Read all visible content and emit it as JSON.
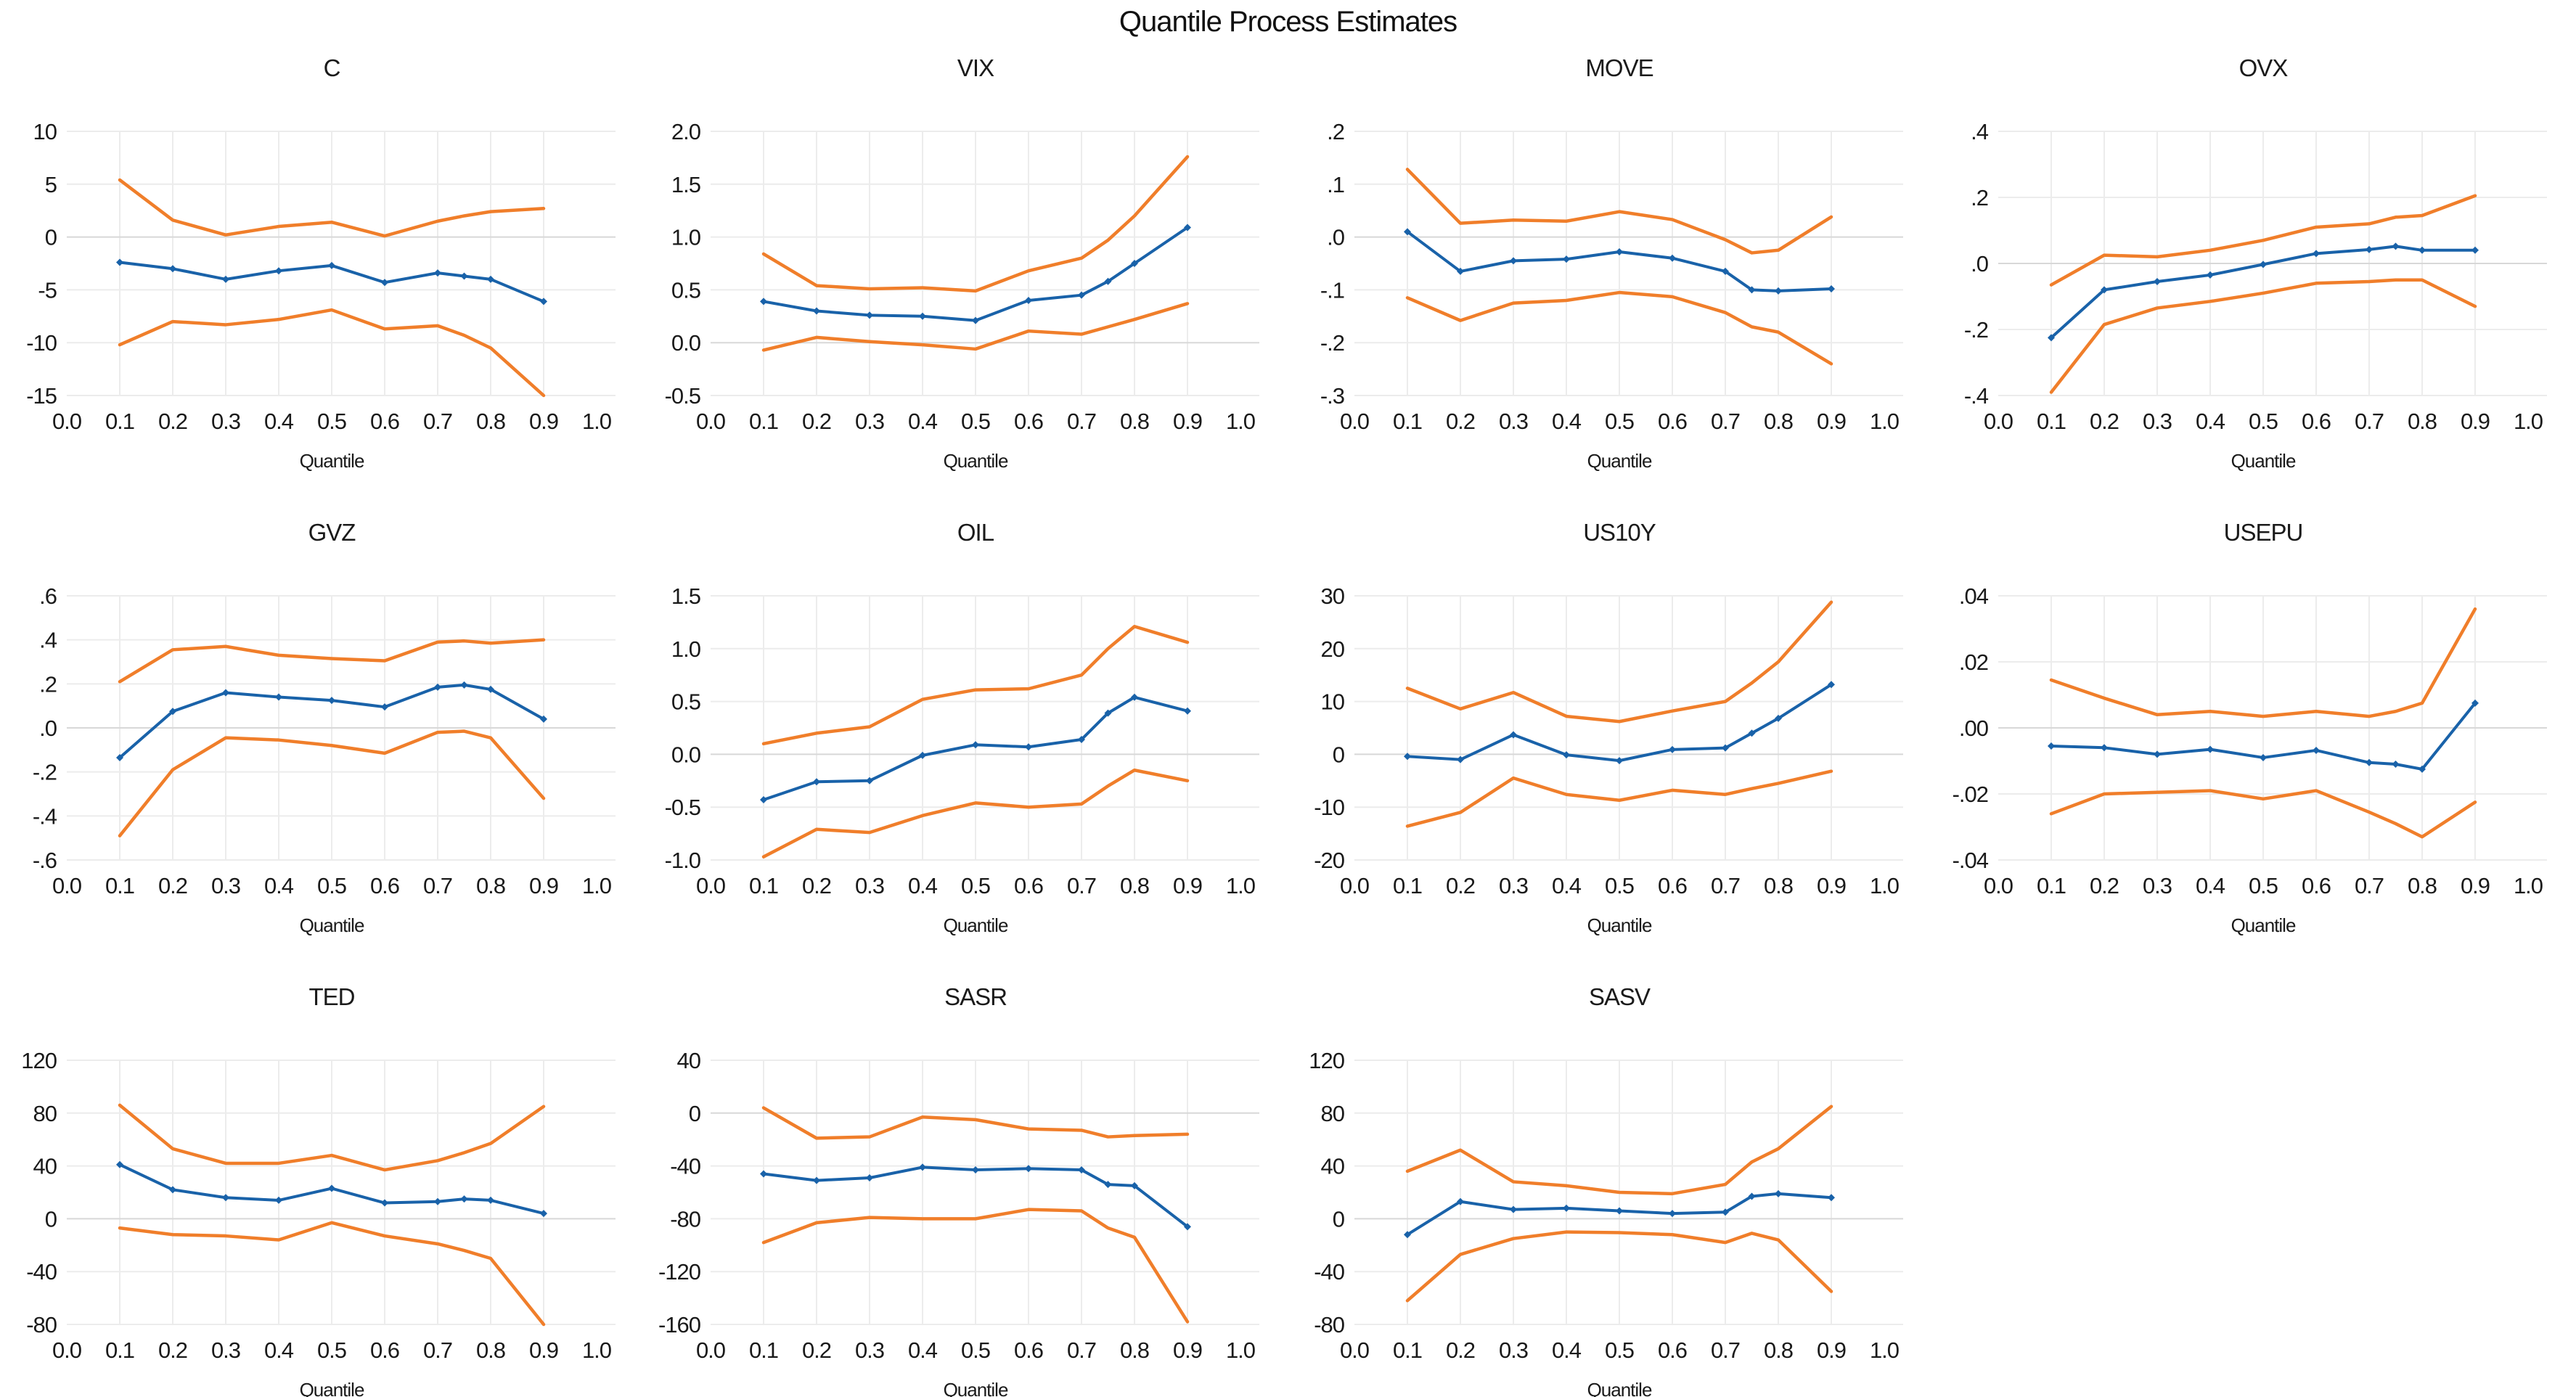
{
  "page": {
    "title": "Quantile Process Estimates"
  },
  "axis": {
    "xlabel": "Quantile",
    "x_ticks": [
      "0.0",
      "0.1",
      "0.2",
      "0.3",
      "0.4",
      "0.5",
      "0.6",
      "0.7",
      "0.8",
      "0.9",
      "1.0"
    ]
  },
  "colors": {
    "estimate": "#1962A9",
    "band": "#F07E2A",
    "grid": "#ECECEC",
    "zero_line": "#D8D8D8",
    "text": "#1A1A1A",
    "background": "#FFFFFF"
  },
  "chart_data": [
    {
      "type": "line",
      "title": "C",
      "xlabel": "Quantile",
      "x": [
        0.1,
        0.2,
        0.3,
        0.4,
        0.5,
        0.6,
        0.7,
        0.75,
        0.8,
        0.9
      ],
      "ylim": [
        -15,
        10
      ],
      "y_tick_values": [
        10,
        5,
        0,
        -5,
        -10,
        -15
      ],
      "y_tick_labels": [
        "10",
        "5",
        "0",
        "-5",
        "-10",
        "-15"
      ],
      "series": [
        {
          "name": "quantile-estimate",
          "role": "estimate",
          "values": [
            -2.4,
            -3.0,
            -4.0,
            -3.2,
            -2.7,
            -4.3,
            -3.4,
            -3.7,
            -4.0,
            -6.1
          ]
        },
        {
          "name": "upper-confidence-band",
          "role": "band",
          "values": [
            5.4,
            1.6,
            0.2,
            1.0,
            1.4,
            0.1,
            1.5,
            2.0,
            2.4,
            2.7
          ]
        },
        {
          "name": "lower-confidence-band",
          "role": "band",
          "values": [
            -10.2,
            -8.0,
            -8.3,
            -7.8,
            -6.9,
            -8.7,
            -8.4,
            -9.3,
            -10.5,
            -15.0
          ]
        }
      ]
    },
    {
      "type": "line",
      "title": "VIX",
      "xlabel": "Quantile",
      "x": [
        0.1,
        0.2,
        0.3,
        0.4,
        0.5,
        0.6,
        0.7,
        0.75,
        0.8,
        0.9
      ],
      "ylim": [
        -0.5,
        2.0
      ],
      "y_tick_values": [
        2.0,
        1.5,
        1.0,
        0.5,
        0.0,
        -0.5
      ],
      "y_tick_labels": [
        "2.0",
        "1.5",
        "1.0",
        "0.5",
        "0.0",
        "-0.5"
      ],
      "series": [
        {
          "name": "quantile-estimate",
          "role": "estimate",
          "values": [
            0.39,
            0.3,
            0.26,
            0.25,
            0.21,
            0.4,
            0.45,
            0.58,
            0.75,
            1.09
          ]
        },
        {
          "name": "upper-confidence-band",
          "role": "band",
          "values": [
            0.84,
            0.54,
            0.51,
            0.52,
            0.49,
            0.68,
            0.8,
            0.97,
            1.2,
            1.76
          ]
        },
        {
          "name": "lower-confidence-band",
          "role": "band",
          "values": [
            -0.07,
            0.05,
            0.01,
            -0.02,
            -0.06,
            0.11,
            0.08,
            0.15,
            0.22,
            0.37
          ]
        }
      ]
    },
    {
      "type": "line",
      "title": "MOVE",
      "xlabel": "Quantile",
      "x": [
        0.1,
        0.2,
        0.3,
        0.4,
        0.5,
        0.6,
        0.7,
        0.75,
        0.8,
        0.9
      ],
      "ylim": [
        -0.3,
        0.2
      ],
      "y_tick_values": [
        0.2,
        0.1,
        0.0,
        -0.1,
        -0.2,
        -0.3
      ],
      "y_tick_labels": [
        ".2",
        ".1",
        ".0",
        "-.1",
        "-.2",
        "-.3"
      ],
      "series": [
        {
          "name": "quantile-estimate",
          "role": "estimate",
          "values": [
            0.01,
            -0.065,
            -0.045,
            -0.042,
            -0.028,
            -0.04,
            -0.065,
            -0.1,
            -0.102,
            -0.098
          ]
        },
        {
          "name": "upper-confidence-band",
          "role": "band",
          "values": [
            0.128,
            0.026,
            0.032,
            0.03,
            0.048,
            0.033,
            -0.005,
            -0.03,
            -0.025,
            0.038
          ]
        },
        {
          "name": "lower-confidence-band",
          "role": "band",
          "values": [
            -0.115,
            -0.158,
            -0.125,
            -0.12,
            -0.105,
            -0.113,
            -0.143,
            -0.17,
            -0.18,
            -0.24
          ]
        }
      ]
    },
    {
      "type": "line",
      "title": "OVX",
      "xlabel": "Quantile",
      "x": [
        0.1,
        0.2,
        0.3,
        0.4,
        0.5,
        0.6,
        0.7,
        0.75,
        0.8,
        0.9
      ],
      "ylim": [
        -0.4,
        0.4
      ],
      "y_tick_values": [
        0.4,
        0.2,
        0.0,
        -0.2,
        -0.4
      ],
      "y_tick_labels": [
        ".4",
        ".2",
        ".0",
        "-.2",
        "-.4"
      ],
      "series": [
        {
          "name": "quantile-estimate",
          "role": "estimate",
          "values": [
            -0.225,
            -0.08,
            -0.055,
            -0.035,
            -0.003,
            0.03,
            0.042,
            0.052,
            0.04,
            0.04
          ]
        },
        {
          "name": "upper-confidence-band",
          "role": "band",
          "values": [
            -0.065,
            0.025,
            0.02,
            0.04,
            0.07,
            0.11,
            0.12,
            0.14,
            0.145,
            0.205
          ]
        },
        {
          "name": "lower-confidence-band",
          "role": "band",
          "values": [
            -0.39,
            -0.185,
            -0.135,
            -0.115,
            -0.09,
            -0.06,
            -0.055,
            -0.05,
            -0.05,
            -0.13
          ]
        }
      ]
    },
    {
      "type": "line",
      "title": "GVZ",
      "xlabel": "Quantile",
      "x": [
        0.1,
        0.2,
        0.3,
        0.4,
        0.5,
        0.6,
        0.7,
        0.75,
        0.8,
        0.9
      ],
      "ylim": [
        -0.6,
        0.6
      ],
      "y_tick_values": [
        0.6,
        0.4,
        0.2,
        0.0,
        -0.2,
        -0.4,
        -0.6
      ],
      "y_tick_labels": [
        ".6",
        ".4",
        ".2",
        ".0",
        "-.2",
        "-.4",
        "-.6"
      ],
      "series": [
        {
          "name": "quantile-estimate",
          "role": "estimate",
          "values": [
            -0.135,
            0.075,
            0.16,
            0.14,
            0.125,
            0.095,
            0.185,
            0.195,
            0.175,
            0.04
          ]
        },
        {
          "name": "upper-confidence-band",
          "role": "band",
          "values": [
            0.21,
            0.355,
            0.37,
            0.33,
            0.315,
            0.305,
            0.39,
            0.395,
            0.385,
            0.4
          ]
        },
        {
          "name": "lower-confidence-band",
          "role": "band",
          "values": [
            -0.49,
            -0.19,
            -0.045,
            -0.055,
            -0.08,
            -0.115,
            -0.02,
            -0.015,
            -0.045,
            -0.32
          ]
        }
      ]
    },
    {
      "type": "line",
      "title": "OIL",
      "xlabel": "Quantile",
      "x": [
        0.1,
        0.2,
        0.3,
        0.4,
        0.5,
        0.6,
        0.7,
        0.75,
        0.8,
        0.9
      ],
      "ylim": [
        -1.0,
        1.5
      ],
      "y_tick_values": [
        1.5,
        1.0,
        0.5,
        0.0,
        -0.5,
        -1.0
      ],
      "y_tick_labels": [
        "1.5",
        "1.0",
        "0.5",
        "0.0",
        "-0.5",
        "-1.0"
      ],
      "series": [
        {
          "name": "quantile-estimate",
          "role": "estimate",
          "values": [
            -0.43,
            -0.26,
            -0.25,
            -0.01,
            0.09,
            0.07,
            0.14,
            0.39,
            0.54,
            0.41
          ]
        },
        {
          "name": "upper-confidence-band",
          "role": "band",
          "values": [
            0.1,
            0.2,
            0.26,
            0.52,
            0.61,
            0.62,
            0.75,
            1.0,
            1.21,
            1.06
          ]
        },
        {
          "name": "lower-confidence-band",
          "role": "band",
          "values": [
            -0.97,
            -0.71,
            -0.74,
            -0.58,
            -0.46,
            -0.5,
            -0.47,
            -0.3,
            -0.15,
            -0.25
          ]
        }
      ]
    },
    {
      "type": "line",
      "title": "US10Y",
      "xlabel": "Quantile",
      "x": [
        0.1,
        0.2,
        0.3,
        0.4,
        0.5,
        0.6,
        0.7,
        0.75,
        0.8,
        0.9
      ],
      "ylim": [
        -20,
        30
      ],
      "y_tick_values": [
        30,
        20,
        10,
        0,
        -10,
        -20
      ],
      "y_tick_labels": [
        "30",
        "20",
        "10",
        "0",
        "-10",
        "-20"
      ],
      "series": [
        {
          "name": "quantile-estimate",
          "role": "estimate",
          "values": [
            -0.4,
            -1.0,
            3.7,
            -0.1,
            -1.2,
            0.9,
            1.2,
            4.0,
            6.8,
            13.2
          ]
        },
        {
          "name": "upper-confidence-band",
          "role": "band",
          "values": [
            12.5,
            8.6,
            11.7,
            7.2,
            6.2,
            8.2,
            10.0,
            13.5,
            17.5,
            28.8
          ]
        },
        {
          "name": "lower-confidence-band",
          "role": "band",
          "values": [
            -13.6,
            -11.0,
            -4.5,
            -7.6,
            -8.7,
            -6.8,
            -7.6,
            -6.5,
            -5.5,
            -3.2
          ]
        }
      ]
    },
    {
      "type": "line",
      "title": "USEPU",
      "xlabel": "Quantile",
      "x": [
        0.1,
        0.2,
        0.3,
        0.4,
        0.5,
        0.6,
        0.7,
        0.75,
        0.8,
        0.9
      ],
      "ylim": [
        -0.04,
        0.04
      ],
      "y_tick_values": [
        0.04,
        0.02,
        0.0,
        -0.02,
        -0.04
      ],
      "y_tick_labels": [
        ".04",
        ".02",
        ".00",
        "-.02",
        "-.04"
      ],
      "series": [
        {
          "name": "quantile-estimate",
          "role": "estimate",
          "values": [
            -0.0055,
            -0.006,
            -0.008,
            -0.0065,
            -0.009,
            -0.0068,
            -0.0105,
            -0.011,
            -0.0125,
            0.0075
          ]
        },
        {
          "name": "upper-confidence-band",
          "role": "band",
          "values": [
            0.0145,
            0.009,
            0.004,
            0.005,
            0.0035,
            0.005,
            0.0035,
            0.005,
            0.0075,
            0.036
          ]
        },
        {
          "name": "lower-confidence-band",
          "role": "band",
          "values": [
            -0.026,
            -0.02,
            -0.0195,
            -0.019,
            -0.0215,
            -0.019,
            -0.0255,
            -0.029,
            -0.033,
            -0.0225
          ]
        }
      ]
    },
    {
      "type": "line",
      "title": "TED",
      "xlabel": "Quantile",
      "x": [
        0.1,
        0.2,
        0.3,
        0.4,
        0.5,
        0.6,
        0.7,
        0.75,
        0.8,
        0.9
      ],
      "ylim": [
        -80,
        120
      ],
      "y_tick_values": [
        120,
        80,
        40,
        0,
        -40,
        -80
      ],
      "y_tick_labels": [
        "120",
        "80",
        "40",
        "0",
        "-40",
        "-80"
      ],
      "series": [
        {
          "name": "quantile-estimate",
          "role": "estimate",
          "values": [
            41,
            22,
            16,
            14,
            23,
            12,
            13,
            15,
            14,
            4
          ]
        },
        {
          "name": "upper-confidence-band",
          "role": "band",
          "values": [
            86,
            53,
            42,
            42,
            48,
            37,
            44,
            50,
            57,
            85
          ]
        },
        {
          "name": "lower-confidence-band",
          "role": "band",
          "values": [
            -7,
            -12,
            -13,
            -16,
            -3,
            -13,
            -19,
            -24,
            -30,
            -80
          ]
        }
      ]
    },
    {
      "type": "line",
      "title": "SASR",
      "xlabel": "Quantile",
      "x": [
        0.1,
        0.2,
        0.3,
        0.4,
        0.5,
        0.6,
        0.7,
        0.75,
        0.8,
        0.9
      ],
      "ylim": [
        -160,
        40
      ],
      "y_tick_values": [
        40,
        0,
        -40,
        -80,
        -120,
        -160
      ],
      "y_tick_labels": [
        "40",
        "0",
        "-40",
        "-80",
        "-120",
        "-160"
      ],
      "series": [
        {
          "name": "quantile-estimate",
          "role": "estimate",
          "values": [
            -46,
            -51,
            -49,
            -41,
            -43,
            -42,
            -43,
            -54,
            -55,
            -86
          ]
        },
        {
          "name": "upper-confidence-band",
          "role": "band",
          "values": [
            4,
            -19,
            -18,
            -3,
            -5,
            -12,
            -13,
            -18,
            -17,
            -16
          ]
        },
        {
          "name": "lower-confidence-band",
          "role": "band",
          "values": [
            -98,
            -83,
            -79,
            -80,
            -80,
            -73,
            -74,
            -87,
            -94,
            -158
          ]
        }
      ]
    },
    {
      "type": "line",
      "title": "SASV",
      "xlabel": "Quantile",
      "x": [
        0.1,
        0.2,
        0.3,
        0.4,
        0.5,
        0.6,
        0.7,
        0.75,
        0.8,
        0.9
      ],
      "ylim": [
        -80,
        120
      ],
      "y_tick_values": [
        120,
        80,
        40,
        0,
        -40,
        -80
      ],
      "y_tick_labels": [
        "120",
        "80",
        "40",
        "0",
        "-40",
        "-80"
      ],
      "series": [
        {
          "name": "quantile-estimate",
          "role": "estimate",
          "values": [
            -12,
            13,
            7,
            8,
            6,
            4,
            5,
            17,
            19,
            16
          ]
        },
        {
          "name": "upper-confidence-band",
          "role": "band",
          "values": [
            36,
            52,
            28,
            25,
            20,
            19,
            26,
            43,
            53,
            85
          ]
        },
        {
          "name": "lower-confidence-band",
          "role": "band",
          "values": [
            -62,
            -27,
            -15,
            -10,
            -10.5,
            -12,
            -18,
            -11,
            -16,
            -55
          ]
        }
      ]
    }
  ]
}
